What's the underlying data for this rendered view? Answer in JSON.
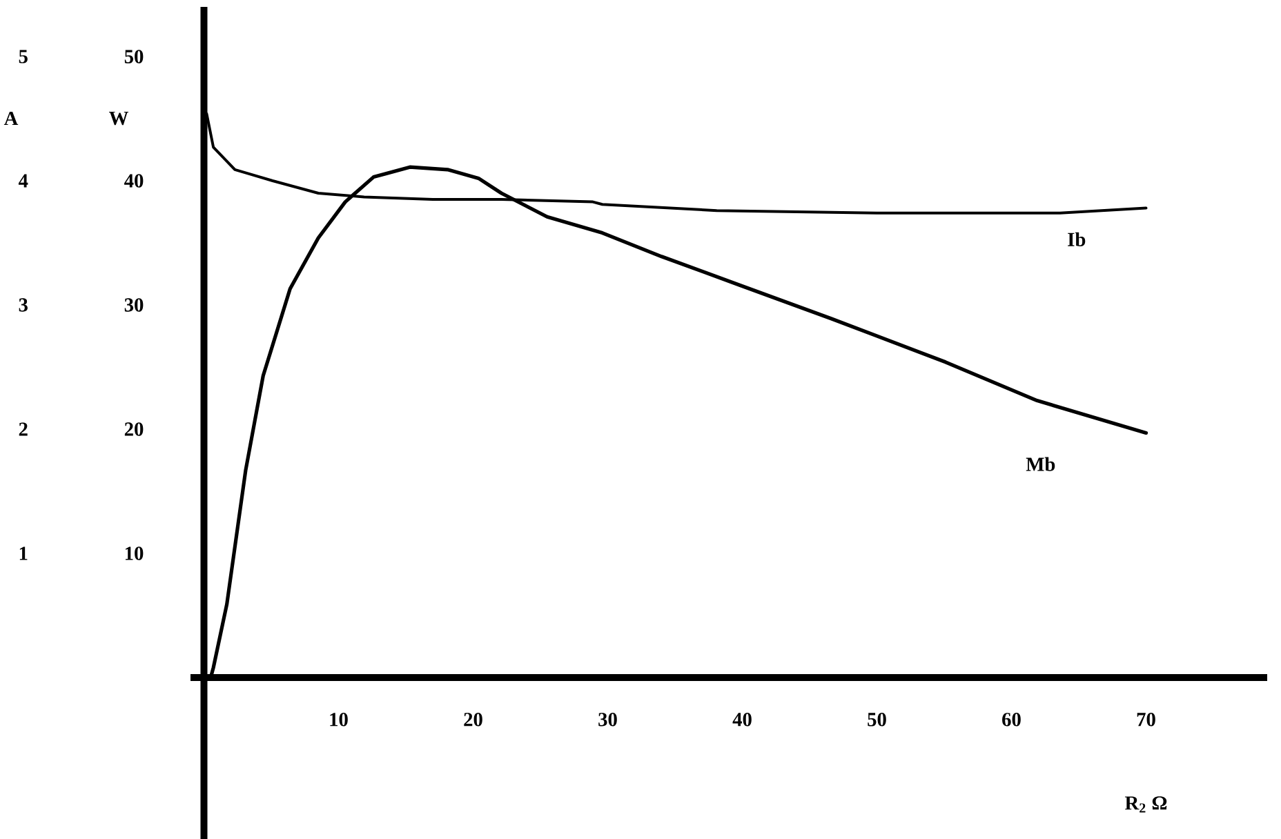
{
  "chart_data": {
    "type": "line",
    "xlabel": "R$_{2}$ Ω",
    "ylabel": "W",
    "y2label": "A",
    "xlim": [
      -1,
      79
    ],
    "xticks": [
      10,
      20,
      30,
      40,
      50,
      60,
      70
    ],
    "ylim": [
      -13,
      54
    ],
    "yticks": [
      10,
      20,
      30,
      40,
      50
    ],
    "y2lim": [
      -1.3,
      5.4
    ],
    "y2ticks": [
      1,
      2,
      3,
      4,
      5
    ],
    "series": [
      {
        "name": "Ib",
        "color": "#000000",
        "axis": "y2",
        "x": [
          0.2,
          0.7,
          2.3,
          5.1,
          8.5,
          11.9,
          17.0,
          22.1,
          28.9,
          29.6,
          38.1,
          50,
          63.6,
          70
        ],
        "values": [
          4.54,
          4.27,
          4.09,
          4.0,
          3.9,
          3.87,
          3.85,
          3.85,
          3.83,
          3.81,
          3.76,
          3.74,
          3.74,
          3.78
        ]
      },
      {
        "name": "Mb",
        "color": "#000000",
        "x": [
          0.5,
          0.7,
          1.7,
          3.1,
          4.4,
          6.4,
          8.5,
          10.5,
          12.6,
          15.3,
          18.1,
          20.4,
          22.1,
          25.5,
          29.6,
          34.0,
          39.8,
          46.6,
          55.1,
          61.9,
          70
        ],
        "values": [
          0,
          0.8,
          5.9,
          16.7,
          24.3,
          31.3,
          35.4,
          38.3,
          40.3,
          41.1,
          40.9,
          40.2,
          39.0,
          37.1,
          35.8,
          33.9,
          31.6,
          28.9,
          25.4,
          22.3,
          19.7
        ]
      }
    ]
  }
}
